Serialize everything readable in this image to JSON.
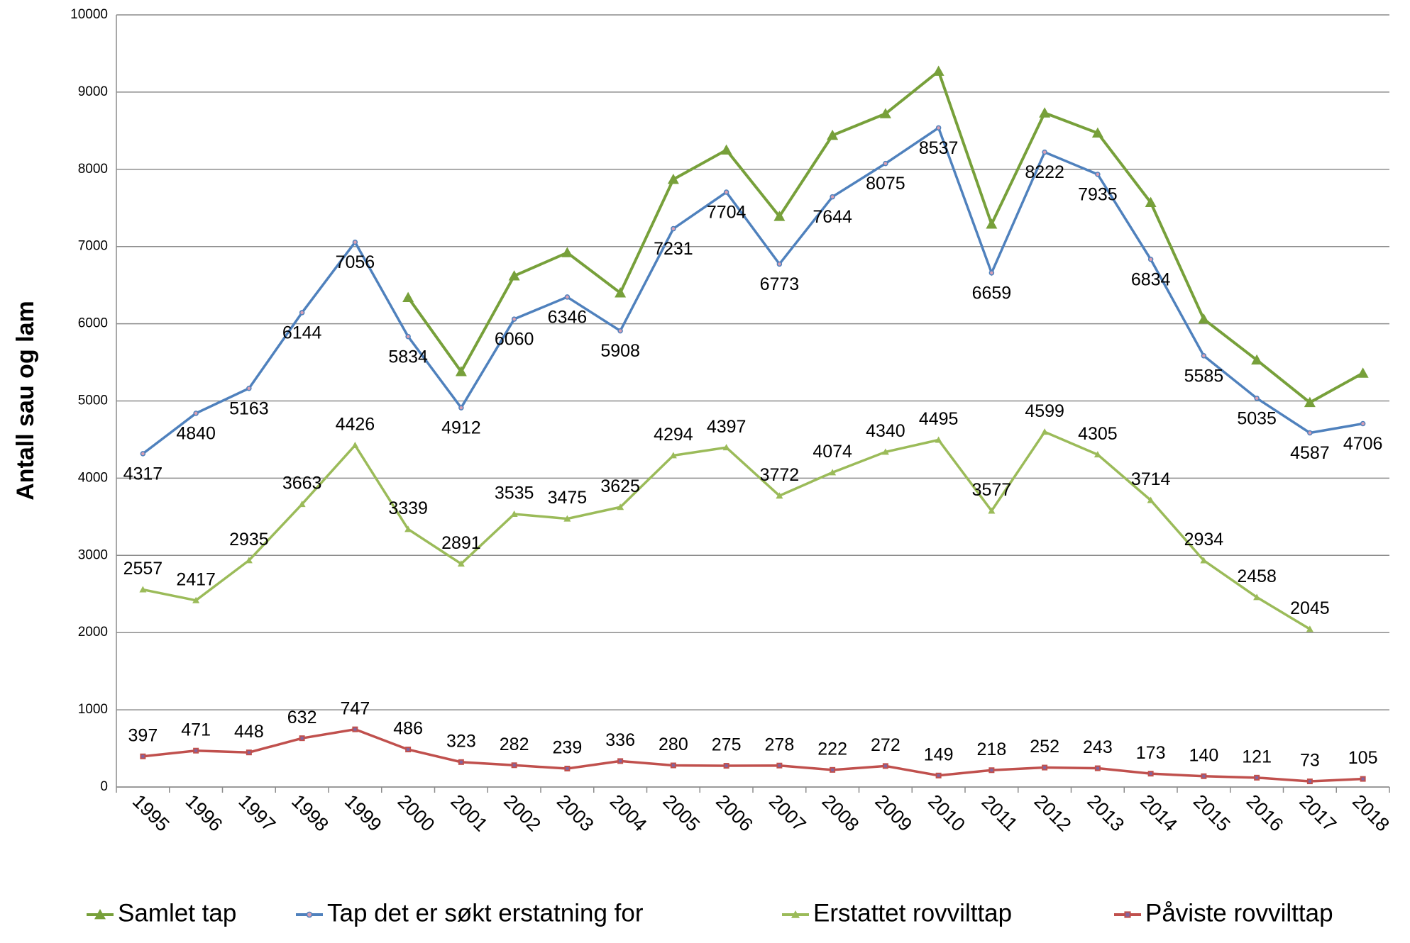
{
  "chart_data": {
    "type": "line",
    "y_label": "Antall sau og lam",
    "categories": [
      "1995",
      "1996",
      "1997",
      "1998",
      "1999",
      "2000",
      "2001",
      "2002",
      "2003",
      "2004",
      "2005",
      "2006",
      "2007",
      "2008",
      "2009",
      "2010",
      "2011",
      "2012",
      "2013",
      "2014",
      "2015",
      "2016",
      "2017",
      "2018"
    ],
    "series": [
      {
        "name": "Samlet tap",
        "color": "#77a03a",
        "marker": "triangle",
        "data_labels": false,
        "values": [
          null,
          null,
          null,
          null,
          null,
          6340,
          5380,
          6620,
          6920,
          6400,
          7870,
          8250,
          7390,
          8440,
          8720,
          9270,
          7290,
          8730,
          8470,
          7570,
          6060,
          5530,
          4980,
          5360
        ]
      },
      {
        "name": "Tap det er søkt erstatning for",
        "color": "#4f81bd",
        "marker": "circle",
        "data_labels": true,
        "label_side": "below",
        "values": [
          4317,
          4840,
          5163,
          6144,
          7056,
          5834,
          4912,
          6060,
          6346,
          5908,
          7231,
          7704,
          6773,
          7644,
          8075,
          8537,
          6659,
          8222,
          7935,
          6834,
          5585,
          5035,
          4587,
          4706
        ]
      },
      {
        "name": "Erstattet rovvilttap",
        "color": "#9bbb59",
        "marker": "triangle",
        "data_labels": true,
        "label_side": "above",
        "values": [
          2557,
          2417,
          2935,
          3663,
          4426,
          3339,
          2891,
          3535,
          3475,
          3625,
          4294,
          4397,
          3772,
          4074,
          4340,
          4495,
          3577,
          4599,
          4305,
          3714,
          2934,
          2458,
          2045,
          null
        ]
      },
      {
        "name": "Påviste rovvilttap",
        "color": "#c0504d",
        "marker": "square",
        "data_labels": true,
        "label_side": "above",
        "values": [
          397,
          471,
          448,
          632,
          747,
          486,
          323,
          282,
          239,
          336,
          280,
          275,
          278,
          222,
          272,
          149,
          218,
          252,
          243,
          173,
          140,
          121,
          73,
          105
        ]
      }
    ],
    "ylim": [
      0,
      10000
    ],
    "yticks": [
      0,
      1000,
      2000,
      3000,
      4000,
      5000,
      6000,
      7000,
      8000,
      9000,
      10000
    ],
    "grid": true,
    "legend": "bottom"
  }
}
